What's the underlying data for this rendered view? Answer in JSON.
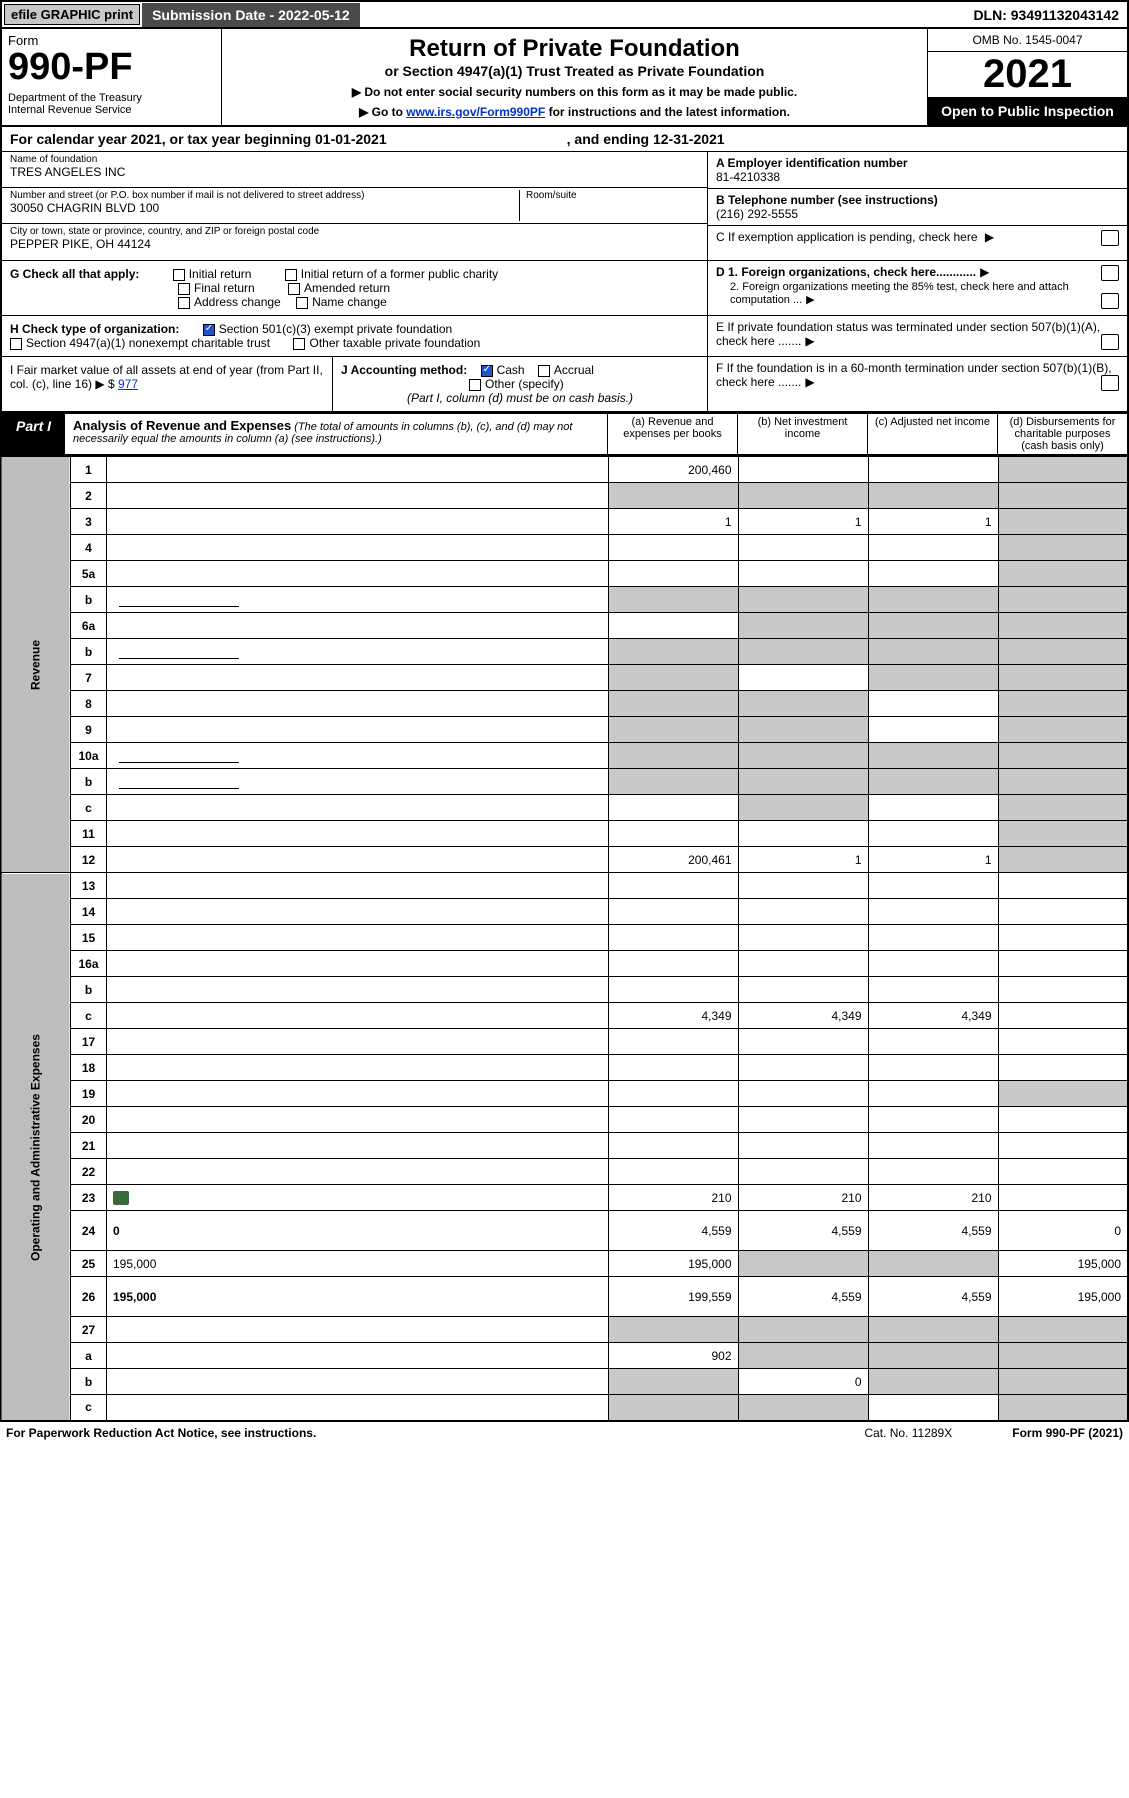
{
  "topbar": {
    "efile": "efile GRAPHIC print",
    "subdate_label": "Submission Date - 2022-05-12",
    "dln": "DLN: 93491132043142"
  },
  "header": {
    "form_word": "Form",
    "form_number": "990-PF",
    "dept": "Department of the Treasury",
    "irs": "Internal Revenue Service",
    "title": "Return of Private Foundation",
    "subtitle": "or Section 4947(a)(1) Trust Treated as Private Foundation",
    "instr1": "▶ Do not enter social security numbers on this form as it may be made public.",
    "instr2_pre": "▶ Go to ",
    "instr2_link": "www.irs.gov/Form990PF",
    "instr2_post": " for instructions and the latest information.",
    "omb": "OMB No. 1545-0047",
    "year": "2021",
    "open": "Open to Public Inspection"
  },
  "calyear": {
    "pre": "For calendar year 2021, or tax year beginning 01-01-2021",
    "post": ", and ending 12-31-2021"
  },
  "entity": {
    "name_lbl": "Name of foundation",
    "name": "TRES ANGELES INC",
    "addr_lbl": "Number and street (or P.O. box number if mail is not delivered to street address)",
    "addr": "30050 CHAGRIN BLVD 100",
    "room_lbl": "Room/suite",
    "city_lbl": "City or town, state or province, country, and ZIP or foreign postal code",
    "city": "PEPPER PIKE, OH  44124",
    "ein_lbl": "A Employer identification number",
    "ein": "81-4210338",
    "tel_lbl": "B Telephone number (see instructions)",
    "tel": "(216) 292-5555",
    "c_lbl": "C If exemption application is pending, check here",
    "d1": "D 1. Foreign organizations, check here............",
    "d2": "2. Foreign organizations meeting the 85% test, check here and attach computation ...",
    "e": "E  If private foundation status was terminated under section 507(b)(1)(A), check here .......",
    "f": "F  If the foundation is in a 60-month termination under section 507(b)(1)(B), check here ......."
  },
  "sectionG": {
    "label": "G Check all that apply:",
    "opts": [
      "Initial return",
      "Final return",
      "Address change",
      "Initial return of a former public charity",
      "Amended return",
      "Name change"
    ]
  },
  "sectionH": {
    "label": "H Check type of organization:",
    "opt1": "Section 501(c)(3) exempt private foundation",
    "opt2": "Section 4947(a)(1) nonexempt charitable trust",
    "opt3": "Other taxable private foundation"
  },
  "sectionI": {
    "label": "I Fair market value of all assets at end of year (from Part II, col. (c), line 16)",
    "val_prefix": "▶ $",
    "val": "977"
  },
  "sectionJ": {
    "label": "J Accounting method:",
    "cash": "Cash",
    "accrual": "Accrual",
    "other": "Other (specify)",
    "note": "(Part I, column (d) must be on cash basis.)"
  },
  "part1": {
    "label": "Part I",
    "title": "Analysis of Revenue and Expenses",
    "note": "(The total of amounts in columns (b), (c), and (d) may not necessarily equal the amounts in column (a) (see instructions).)",
    "col_a": "(a)   Revenue and expenses per books",
    "col_b": "(b)   Net investment income",
    "col_c": "(c)   Adjusted net income",
    "col_d": "(d)   Disbursements for charitable purposes (cash basis only)"
  },
  "side_labels": {
    "revenue": "Revenue",
    "opexp": "Operating and Administrative Expenses"
  },
  "rows": [
    {
      "n": "1",
      "d": "",
      "a": "200,460",
      "b": "",
      "c": "",
      "d_shade": true
    },
    {
      "n": "2",
      "d": "",
      "a": "",
      "b": "",
      "c": "",
      "all_shade": true
    },
    {
      "n": "3",
      "d": "",
      "a": "1",
      "b": "1",
      "c": "1",
      "d_shade": true
    },
    {
      "n": "4",
      "d": "",
      "a": "",
      "b": "",
      "c": "",
      "d_shade": true
    },
    {
      "n": "5a",
      "d": "",
      "a": "",
      "b": "",
      "c": "",
      "d_shade": true
    },
    {
      "n": "b",
      "d": "",
      "a": "",
      "b": "",
      "c": "",
      "all_shade": true,
      "inline_box": true
    },
    {
      "n": "6a",
      "d": "",
      "a": "",
      "b": "",
      "c": "",
      "bcd_shade": true
    },
    {
      "n": "b",
      "d": "",
      "a": "",
      "b": "",
      "c": "",
      "all_shade": true,
      "inline_box": true
    },
    {
      "n": "7",
      "d": "",
      "a": "",
      "b": "",
      "c": "",
      "a_shade": true,
      "cd_shade": true
    },
    {
      "n": "8",
      "d": "",
      "a": "",
      "b": "",
      "c": "",
      "ab_shade": true,
      "d_shade": true
    },
    {
      "n": "9",
      "d": "",
      "a": "",
      "b": "",
      "c": "",
      "ab_shade": true,
      "d_shade": true
    },
    {
      "n": "10a",
      "d": "",
      "a": "",
      "b": "",
      "c": "",
      "all_shade": true,
      "inline_box": true
    },
    {
      "n": "b",
      "d": "",
      "a": "",
      "b": "",
      "c": "",
      "all_shade": true,
      "inline_box": true
    },
    {
      "n": "c",
      "d": "",
      "a": "",
      "b": "",
      "c": "",
      "b_shade": true,
      "d_shade": true
    },
    {
      "n": "11",
      "d": "",
      "a": "",
      "b": "",
      "c": "",
      "d_shade": true
    },
    {
      "n": "12",
      "d": "",
      "a": "200,461",
      "b": "1",
      "c": "1",
      "bold": true,
      "d_shade": true
    },
    {
      "n": "13",
      "d": "",
      "a": "",
      "b": "",
      "c": ""
    },
    {
      "n": "14",
      "d": "",
      "a": "",
      "b": "",
      "c": ""
    },
    {
      "n": "15",
      "d": "",
      "a": "",
      "b": "",
      "c": ""
    },
    {
      "n": "16a",
      "d": "",
      "a": "",
      "b": "",
      "c": ""
    },
    {
      "n": "b",
      "d": "",
      "a": "",
      "b": "",
      "c": ""
    },
    {
      "n": "c",
      "d": "",
      "a": "4,349",
      "b": "4,349",
      "c": "4,349"
    },
    {
      "n": "17",
      "d": "",
      "a": "",
      "b": "",
      "c": ""
    },
    {
      "n": "18",
      "d": "",
      "a": "",
      "b": "",
      "c": ""
    },
    {
      "n": "19",
      "d": "",
      "a": "",
      "b": "",
      "c": "",
      "d_shade": true
    },
    {
      "n": "20",
      "d": "",
      "a": "",
      "b": "",
      "c": ""
    },
    {
      "n": "21",
      "d": "",
      "a": "",
      "b": "",
      "c": ""
    },
    {
      "n": "22",
      "d": "",
      "a": "",
      "b": "",
      "c": ""
    },
    {
      "n": "23",
      "d": "",
      "a": "210",
      "b": "210",
      "c": "210",
      "attach": true
    },
    {
      "n": "24",
      "d": "0",
      "a": "4,559",
      "b": "4,559",
      "c": "4,559",
      "bold": true,
      "tall": true
    },
    {
      "n": "25",
      "d": "195,000",
      "a": "195,000",
      "b": "",
      "c": "",
      "bc_shade": true
    },
    {
      "n": "26",
      "d": "195,000",
      "a": "199,559",
      "b": "4,559",
      "c": "4,559",
      "bold": true,
      "tall": true
    },
    {
      "n": "27",
      "d": "",
      "a": "",
      "b": "",
      "c": "",
      "all_shade": true
    },
    {
      "n": "a",
      "d": "",
      "a": "902",
      "b": "",
      "c": "",
      "bold": true,
      "bcd_shade": true
    },
    {
      "n": "b",
      "d": "",
      "a": "",
      "b": "0",
      "c": "",
      "bold": true,
      "a_shade": true,
      "cd_shade": true
    },
    {
      "n": "c",
      "d": "",
      "a": "",
      "b": "",
      "c": "",
      "bold": true,
      "ab_shade": true,
      "d_shade": true
    }
  ],
  "footer": {
    "paperwork": "For Paperwork Reduction Act Notice, see instructions.",
    "cat": "Cat. No. 11289X",
    "form": "Form 990-PF (2021)"
  }
}
